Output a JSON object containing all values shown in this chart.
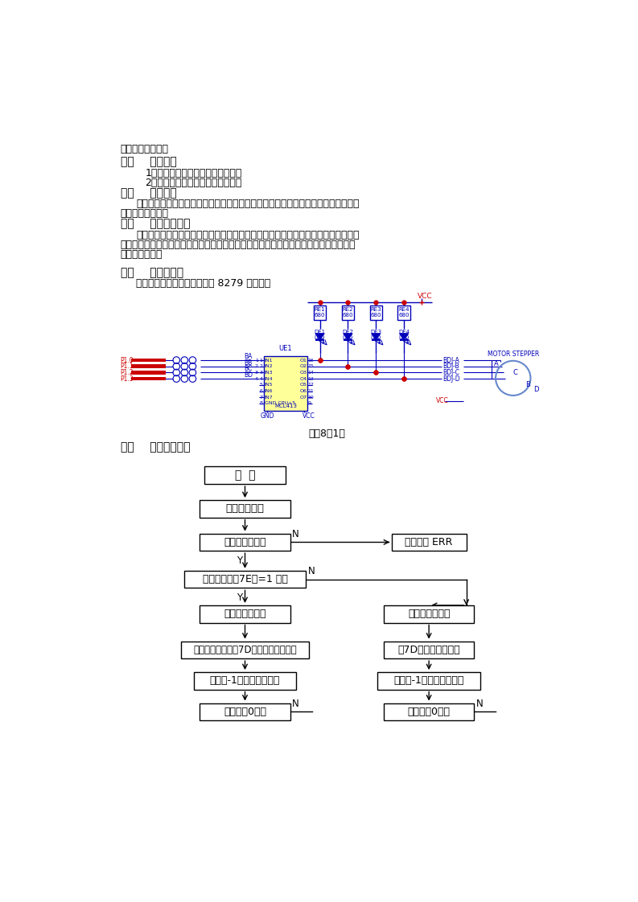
{
  "title": "步进电机控制实验",
  "s1_head": "一、    实验目的",
  "s1_item1": "1、了解步进电机控制的基本原理。",
  "s1_item2": "2、掌握步进电机转动的编程方法。",
  "s2_head": "二、    实验内容",
  "s2_line1": "通过程序改变正、反转命令，转速参数和转动步数，并在显示器上显示，转动步数减",
  "s2_line2": "为零时停止转动。",
  "s3_head": "三、    实验预备知识",
  "s3_line1": "步进电机驱动原理是切换每相线圈中的电流和顺序，来使电机作步进式旋转。驱动电",
  "s3_line2": "路由脉冲信号来控制，所以调节脉冲信号的频率便可改变步进电机的转速。单片机控制步",
  "s3_line3": "进电机最适合。",
  "s4_head": "四、    实验接线图",
  "s4_sub": "显示部分参考键盘显示控制器 8279 应用实验",
  "fig_caption": "图（8－1）",
  "s5_head": "五、    实验程序框图",
  "fc_start": "开  始",
  "fc_init": "设置初始显示",
  "fc_check": "设置是否正确？",
  "fc_err": "显示出错 ERR",
  "fc_buf7e": "显示缓冲区（7E）=1 吗？",
  "fc_ccw": "逆时针转动一步",
  "fc_cw": "顺时针转动一步",
  "fc_delay_l": "根据显示缓冲区（7D）的内容计算延时",
  "fc_delay_r": "（7D）内容计算延时",
  "fc_step_l": "步距数-1，送显示缓冲区",
  "fc_step_r": "步距数-1，送显示缓冲区",
  "fc_zero_l": "步距数为0吗？",
  "fc_zero_r": "步距数为0吗？",
  "cc": "#0000bb",
  "red": "#cc0000",
  "yellow": "#ffff99",
  "dot_red": "#cc0000"
}
